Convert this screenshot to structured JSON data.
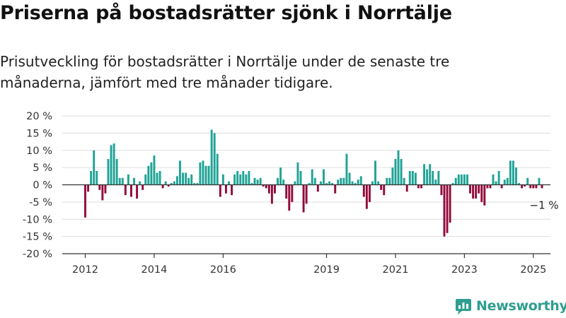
{
  "header": {
    "title": "Priserna på bostadsrätter sjönk i Norrtälje",
    "subtitle": "Prisutveckling för bostadsrätter i Norrtälje under de senaste tre månaderna, jämfört med tre månader tidigare."
  },
  "brand": {
    "name": "Newsworthy"
  },
  "colors": {
    "positive": "#1fa396",
    "negative": "#930a3c",
    "grid": "#dddddd",
    "axis": "#333333",
    "brand": "#2e9e8f"
  },
  "chart_data": {
    "type": "bar",
    "title": "Priserna på bostadsrätter sjönk i Norrtälje",
    "subtitle": "Prisutveckling för bostadsrätter i Norrtälje under de senaste tre månaderna, jämfört med tre månader tidigare.",
    "xlabel": "",
    "ylabel": "",
    "unit": "%",
    "ylim": [
      -20,
      20
    ],
    "yticks": [
      20,
      15,
      10,
      5,
      0,
      -5,
      -10,
      -15,
      -20
    ],
    "ytick_labels": [
      "20 %",
      "15 %",
      "10 %",
      "5 %",
      "0 %",
      "-5 %",
      "-10 %",
      "-15 %",
      "-20 %"
    ],
    "x_start": "2012-01",
    "x_ticks": [
      {
        "label": "2012",
        "x": "2012-01"
      },
      {
        "label": "2014",
        "x": "2014-01"
      },
      {
        "label": "2016",
        "x": "2016-01"
      },
      {
        "label": "2019",
        "x": "2019-01"
      },
      {
        "label": "2021",
        "x": "2021-01"
      },
      {
        "label": "2023",
        "x": "2023-01"
      },
      {
        "label": "2025",
        "x": "2025-01"
      }
    ],
    "annotation": {
      "label": "−1 %",
      "x": "2025-05",
      "value": -1
    },
    "grid": true,
    "values": [
      -9.5,
      -2,
      4,
      10,
      4,
      -1.5,
      -4.5,
      -2.5,
      7.5,
      11.5,
      12,
      7.5,
      2,
      2,
      -3,
      3,
      -3.5,
      2,
      -4,
      1,
      -1.5,
      3,
      5.5,
      6.5,
      8.5,
      3.5,
      4,
      -1,
      1,
      -0.5,
      0.5,
      1,
      2.5,
      7,
      3.5,
      3.5,
      2,
      3,
      0.5,
      0.5,
      6.5,
      7,
      5.5,
      5.5,
      16,
      15,
      9,
      -3.5,
      3,
      -2.5,
      1,
      -3,
      3,
      4,
      3,
      4,
      3,
      4,
      0.5,
      2,
      1.5,
      2,
      -0.5,
      -1,
      -2.5,
      -5.5,
      -2.5,
      2,
      5,
      1.5,
      -4,
      -7.5,
      -5,
      1,
      6.5,
      4,
      -8,
      -5.5,
      0.5,
      4.5,
      2,
      -2,
      1,
      4.5,
      0.5,
      1,
      0.5,
      -2.5,
      1.5,
      2,
      2,
      9,
      3.5,
      1,
      0.5,
      1.5,
      2.5,
      -3.5,
      -7,
      -5,
      1,
      7,
      1,
      -1.5,
      -3,
      2,
      2,
      5,
      7.5,
      10,
      7.5,
      2,
      -2,
      4,
      4,
      3.5,
      -1,
      -1,
      6,
      4.5,
      6,
      4,
      1.5,
      4,
      -3,
      -15,
      -14,
      -11,
      0.5,
      2,
      3,
      3,
      3,
      3,
      -2.5,
      -4,
      -4,
      -2.5,
      -5,
      -6,
      -1,
      -1,
      3,
      1,
      4,
      -1,
      1.5,
      2,
      7,
      7,
      5,
      0.5,
      -1,
      -0.5,
      2,
      -1,
      -1,
      -1,
      2,
      -1
    ]
  }
}
